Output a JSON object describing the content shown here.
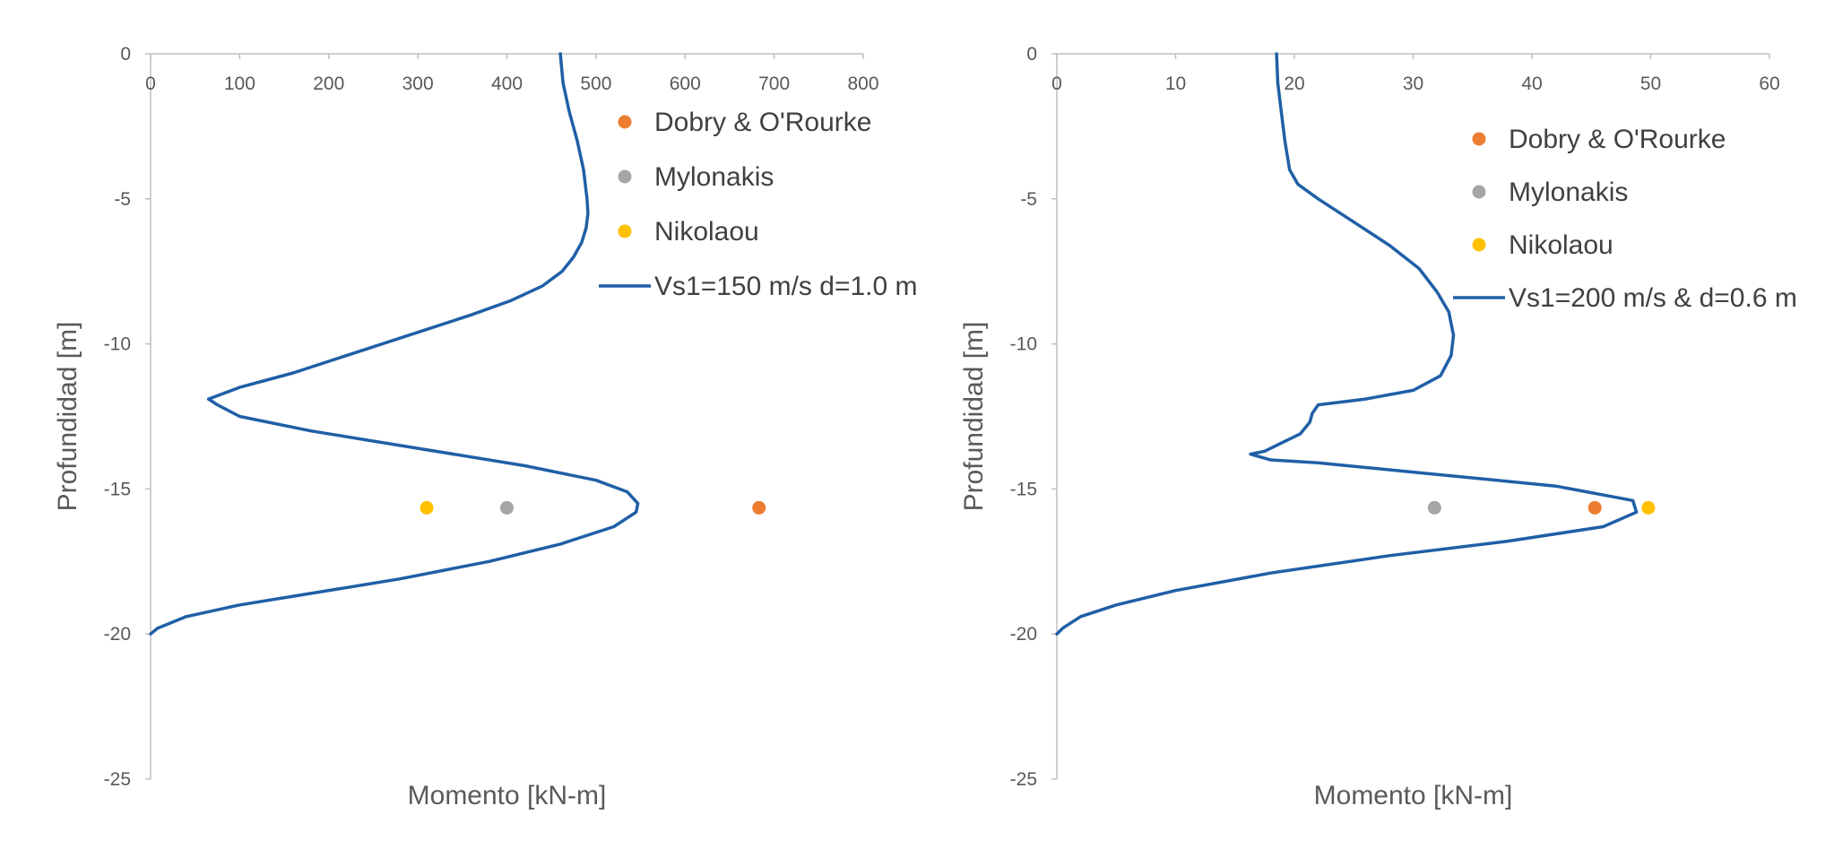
{
  "chart_data": [
    {
      "type": "scatter",
      "title": "",
      "xlabel": "Momento [kN-m]",
      "ylabel": "Profundidad [m]",
      "xlim": [
        0,
        800
      ],
      "ylim": [
        -25,
        0
      ],
      "x_ticks": [
        "0",
        "100",
        "200",
        "300",
        "400",
        "500",
        "600",
        "700",
        "800"
      ],
      "y_ticks": [
        "0",
        "-5",
        "-10",
        "-15",
        "-20",
        "-25"
      ],
      "x_axis_position": "top",
      "grid": false,
      "legend_position": "right",
      "points": [
        {
          "name": "Dobry & O'Rourke",
          "color": "#ED7D31",
          "x": 683,
          "y": -15.65
        },
        {
          "name": "Mylonakis",
          "color": "#A5A5A5",
          "x": 400,
          "y": -15.65
        },
        {
          "name": "Nikolaou",
          "color": "#FFC000",
          "x": 310,
          "y": -15.65
        }
      ],
      "series": [
        {
          "name": "Vs1=150 m/s d=1.0 m",
          "color": "#1F5FA6",
          "x": [
            460,
            463,
            470,
            479,
            486,
            490,
            491,
            489,
            484,
            475,
            462,
            440,
            405,
            360,
            300,
            230,
            160,
            100,
            65,
            75,
            100,
            180,
            300,
            420,
            500,
            535,
            547,
            545,
            520,
            460,
            380,
            280,
            180,
            100,
            40,
            8,
            0
          ],
          "y": [
            0,
            -1,
            -2,
            -3,
            -4,
            -5,
            -5.5,
            -6,
            -6.5,
            -7,
            -7.5,
            -8,
            -8.5,
            -9,
            -9.6,
            -10.3,
            -11,
            -11.5,
            -11.9,
            -12.1,
            -12.5,
            -13,
            -13.6,
            -14.2,
            -14.7,
            -15.1,
            -15.5,
            -15.8,
            -16.3,
            -16.9,
            -17.5,
            -18.1,
            -18.6,
            -19,
            -19.4,
            -19.8,
            -20
          ]
        }
      ]
    },
    {
      "type": "scatter",
      "title": "",
      "xlabel": "Momento [kN-m]",
      "ylabel": "Profundidad [m]",
      "xlim": [
        0,
        60
      ],
      "ylim": [
        -25,
        0
      ],
      "x_ticks": [
        "0",
        "10",
        "20",
        "30",
        "40",
        "50",
        "60"
      ],
      "y_ticks": [
        "0",
        "-5",
        "-10",
        "-15",
        "-20",
        "-25"
      ],
      "x_axis_position": "top",
      "grid": false,
      "legend_position": "right",
      "points": [
        {
          "name": "Dobry & O'Rourke",
          "color": "#ED7D31",
          "x": 45.3,
          "y": -15.65
        },
        {
          "name": "Mylonakis",
          "color": "#A5A5A5",
          "x": 31.8,
          "y": -15.65
        },
        {
          "name": "Nikolaou",
          "color": "#FFC000",
          "x": 49.8,
          "y": -15.65
        }
      ],
      "series": [
        {
          "name": "Vs1=200 m/s & d=0.6 m",
          "color": "#1F5FA6",
          "x": [
            18.5,
            18.6,
            18.9,
            19.2,
            19.6,
            20.3,
            22,
            25,
            28,
            30.5,
            32,
            33,
            33.4,
            33.2,
            32.3,
            30,
            26,
            22,
            21.5,
            21.3,
            20.5,
            19,
            17.5,
            16.3,
            18,
            22,
            32,
            42,
            48.5,
            48.8,
            46,
            38,
            28,
            18,
            10,
            5,
            2,
            0.5,
            0
          ],
          "y": [
            0,
            -1,
            -2,
            -3,
            -4,
            -4.5,
            -5,
            -5.8,
            -6.6,
            -7.4,
            -8.2,
            -8.9,
            -9.7,
            -10.4,
            -11.1,
            -11.6,
            -11.9,
            -12.1,
            -12.4,
            -12.7,
            -13.1,
            -13.4,
            -13.7,
            -13.8,
            -14,
            -14.1,
            -14.5,
            -14.9,
            -15.4,
            -15.8,
            -16.3,
            -16.8,
            -17.3,
            -17.9,
            -18.5,
            -19,
            -19.4,
            -19.8,
            -20
          ]
        }
      ]
    }
  ]
}
